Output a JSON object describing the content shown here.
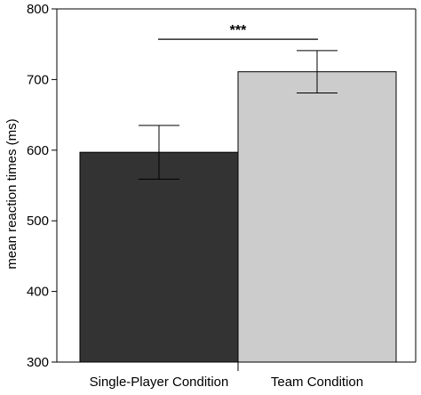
{
  "chart_data": {
    "type": "bar",
    "title": "",
    "xlabel": "",
    "ylabel": "mean reaction times (ms)",
    "ylim": [
      300,
      800
    ],
    "yticks": [
      300,
      400,
      500,
      600,
      700,
      800
    ],
    "categories": [
      "Single-Player Condition",
      "Team Condition"
    ],
    "values": [
      597,
      711
    ],
    "error": [
      {
        "low": 559,
        "high": 635
      },
      {
        "low": 681,
        "high": 741
      }
    ],
    "colors": [
      "#333333",
      "#cccccc"
    ],
    "significance": {
      "label": "***",
      "between": [
        0,
        1
      ],
      "level": 757
    },
    "grid": false,
    "legend": "none"
  }
}
